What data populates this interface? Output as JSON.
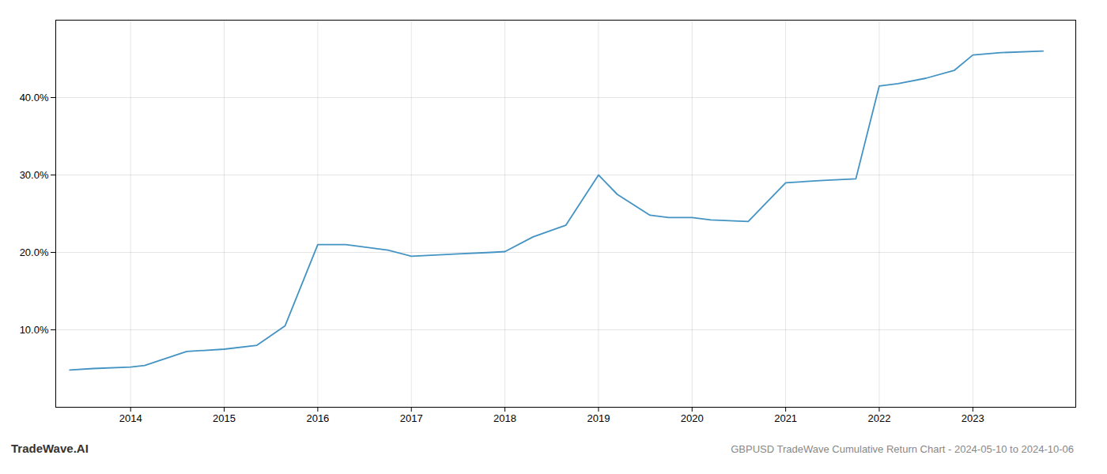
{
  "chart_data": {
    "type": "line",
    "title": "GBPUSD TradeWave Cumulative Return Chart - 2024-05-10 to 2024-10-06",
    "annotations": [
      "TradeWave.AI"
    ],
    "x": [
      2013.35,
      2013.6,
      2014.0,
      2014.15,
      2014.6,
      2015.0,
      2015.35,
      2015.65,
      2016.0,
      2016.3,
      2016.75,
      2017.0,
      2017.5,
      2017.85,
      2018.0,
      2018.3,
      2018.65,
      2019.0,
      2019.2,
      2019.55,
      2019.75,
      2020.0,
      2020.2,
      2020.6,
      2021.0,
      2021.4,
      2021.75,
      2022.0,
      2022.2,
      2022.5,
      2022.8,
      2023.0,
      2023.3,
      2023.75
    ],
    "values": [
      4.8,
      5.0,
      5.2,
      5.4,
      7.2,
      7.5,
      8.0,
      10.5,
      21.0,
      21.0,
      20.3,
      19.5,
      19.8,
      20.0,
      20.1,
      22.0,
      23.5,
      30.0,
      27.5,
      24.8,
      24.5,
      24.5,
      24.2,
      24.0,
      29.0,
      29.3,
      29.5,
      41.5,
      41.8,
      42.5,
      43.5,
      45.5,
      45.8,
      46.0
    ],
    "color": "#4393c3",
    "xlim": [
      2013.2,
      2024.1
    ],
    "ylim": [
      0,
      50
    ],
    "xticks": [
      2014,
      2015,
      2016,
      2017,
      2018,
      2019,
      2020,
      2021,
      2022,
      2023
    ],
    "yticks": [
      {
        "value": 10.0,
        "label": "10.0%"
      },
      {
        "value": 20.0,
        "label": "20.0%"
      },
      {
        "value": 30.0,
        "label": "30.0%"
      },
      {
        "value": 40.0,
        "label": "40.0%"
      }
    ],
    "grid": true
  }
}
